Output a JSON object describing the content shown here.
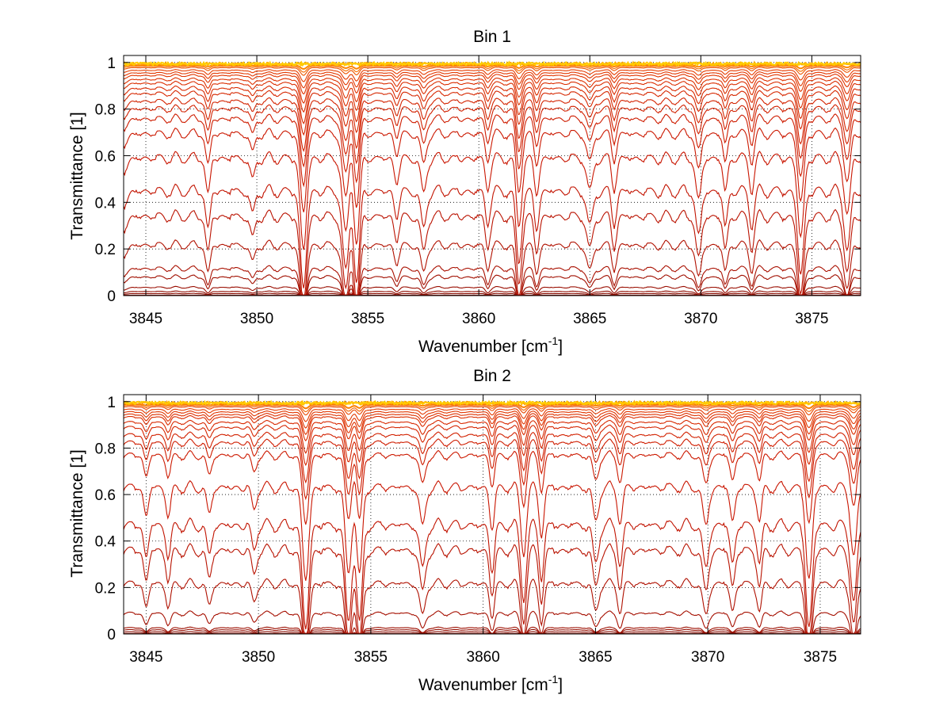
{
  "chart_data": [
    {
      "type": "line",
      "title": "Bin 1",
      "xlabel": "Wavenumber [cm",
      "xlabel_sup": "-1",
      "xlabel_end": "]",
      "ylabel": "Transmittance [1]",
      "xlim": [
        3844,
        3877.2
      ],
      "ylim": [
        0,
        1.03
      ],
      "xticks": [
        "3845",
        "3850",
        "3855",
        "3860",
        "3865",
        "3870",
        "3875"
      ],
      "yticks": [
        "0",
        "0.2",
        "0.4",
        "0.6",
        "0.8",
        "1"
      ],
      "grid": true,
      "levels": [
        0.0,
        0.01,
        0.02,
        0.04,
        0.09,
        0.13,
        0.24,
        0.37,
        0.48,
        0.62,
        0.72,
        0.78,
        0.82,
        0.85,
        0.88,
        0.9,
        0.92,
        0.935,
        0.95,
        0.96,
        0.97,
        0.98,
        0.985,
        0.99,
        0.995,
        1.0
      ],
      "lines": [
        {
          "x": 3844.0,
          "depth": 0.1,
          "width": 0.25
        },
        {
          "x": 3847.8,
          "depth": 0.3,
          "width": 0.15
        },
        {
          "x": 3849.8,
          "depth": 0.2,
          "width": 0.15
        },
        {
          "x": 3852.1,
          "depth": 0.75,
          "width": 0.2
        },
        {
          "x": 3854.0,
          "depth": 0.65,
          "width": 0.2
        },
        {
          "x": 3854.5,
          "depth": 0.7,
          "width": 0.18
        },
        {
          "x": 3856.3,
          "depth": 0.2,
          "width": 0.15
        },
        {
          "x": 3857.5,
          "depth": 0.3,
          "width": 0.18
        },
        {
          "x": 3860.4,
          "depth": 0.25,
          "width": 0.15
        },
        {
          "x": 3861.8,
          "depth": 0.55,
          "width": 0.18
        },
        {
          "x": 3862.6,
          "depth": 0.3,
          "width": 0.15
        },
        {
          "x": 3865.0,
          "depth": 0.3,
          "width": 0.18
        },
        {
          "x": 3866.1,
          "depth": 0.25,
          "width": 0.15
        },
        {
          "x": 3869.9,
          "depth": 0.35,
          "width": 0.18
        },
        {
          "x": 3871.1,
          "depth": 0.28,
          "width": 0.15
        },
        {
          "x": 3872.3,
          "depth": 0.25,
          "width": 0.15
        },
        {
          "x": 3874.5,
          "depth": 0.65,
          "width": 0.2
        },
        {
          "x": 3876.6,
          "depth": 0.45,
          "width": 0.2
        }
      ]
    },
    {
      "type": "line",
      "title": "Bin 2",
      "xlabel": "Wavenumber [cm",
      "xlabel_sup": "-1",
      "xlabel_end": "]",
      "ylabel": "Transmittance [1]",
      "xlim": [
        3844,
        3876.8
      ],
      "ylim": [
        0,
        1.03
      ],
      "xticks": [
        "3845",
        "3850",
        "3855",
        "3860",
        "3865",
        "3870",
        "3875"
      ],
      "yticks": [
        "0",
        "0.2",
        "0.4",
        "0.6",
        "0.8",
        "1"
      ],
      "grid": true,
      "levels": [
        0.0,
        0.01,
        0.02,
        0.03,
        0.1,
        0.24,
        0.39,
        0.5,
        0.66,
        0.79,
        0.84,
        0.87,
        0.9,
        0.92,
        0.94,
        0.95,
        0.96,
        0.97,
        0.98,
        0.985,
        0.99,
        0.995,
        1.0
      ],
      "lines": [
        {
          "x": 3845.0,
          "depth": 0.25,
          "width": 0.15
        },
        {
          "x": 3846.0,
          "depth": 0.25,
          "width": 0.15
        },
        {
          "x": 3847.8,
          "depth": 0.25,
          "width": 0.15
        },
        {
          "x": 3849.8,
          "depth": 0.2,
          "width": 0.15
        },
        {
          "x": 3852.1,
          "depth": 0.8,
          "width": 0.2
        },
        {
          "x": 3854.0,
          "depth": 0.75,
          "width": 0.2
        },
        {
          "x": 3854.5,
          "depth": 0.78,
          "width": 0.18
        },
        {
          "x": 3857.3,
          "depth": 0.35,
          "width": 0.18
        },
        {
          "x": 3860.4,
          "depth": 0.35,
          "width": 0.15
        },
        {
          "x": 3861.8,
          "depth": 0.55,
          "width": 0.18
        },
        {
          "x": 3862.6,
          "depth": 0.4,
          "width": 0.15
        },
        {
          "x": 3865.0,
          "depth": 0.3,
          "width": 0.18
        },
        {
          "x": 3866.1,
          "depth": 0.3,
          "width": 0.15
        },
        {
          "x": 3869.9,
          "depth": 0.35,
          "width": 0.18
        },
        {
          "x": 3871.1,
          "depth": 0.3,
          "width": 0.15
        },
        {
          "x": 3872.3,
          "depth": 0.3,
          "width": 0.15
        },
        {
          "x": 3874.5,
          "depth": 0.8,
          "width": 0.2
        },
        {
          "x": 3876.5,
          "depth": 0.6,
          "width": 0.2
        }
      ]
    }
  ]
}
